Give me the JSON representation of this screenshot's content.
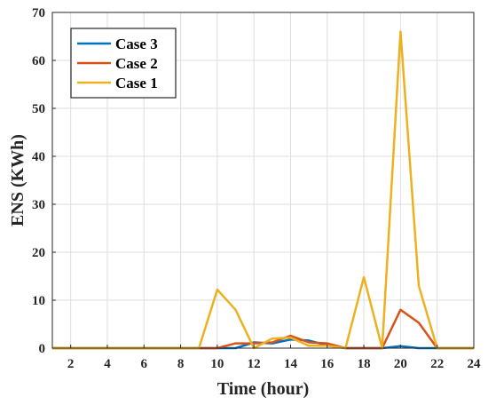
{
  "chart_data": {
    "type": "line",
    "title": "",
    "xlabel": "Time (hour)",
    "ylabel": "ENS (KWh)",
    "xlim": [
      1,
      24
    ],
    "ylim": [
      0,
      70
    ],
    "xticks": [
      2,
      4,
      6,
      8,
      10,
      12,
      14,
      16,
      18,
      20,
      22,
      24
    ],
    "yticks": [
      0,
      10,
      20,
      30,
      40,
      50,
      60,
      70
    ],
    "grid": true,
    "legend_position": "top-left",
    "x": [
      1,
      2,
      3,
      4,
      5,
      6,
      7,
      8,
      9,
      10,
      11,
      12,
      13,
      14,
      15,
      16,
      17,
      18,
      19,
      20,
      21,
      22,
      23,
      24
    ],
    "series": [
      {
        "name": "Case 3",
        "color": "#0072BD",
        "values": [
          0,
          0,
          0,
          0,
          0,
          0,
          0,
          0,
          0,
          0,
          0,
          1.2,
          1.0,
          1.8,
          1.6,
          0.6,
          0,
          0,
          0,
          0.4,
          0,
          0,
          0,
          0
        ]
      },
      {
        "name": "Case 2",
        "color": "#D95319",
        "values": [
          0,
          0,
          0,
          0,
          0,
          0,
          0,
          0,
          0,
          0,
          1.0,
          1.0,
          1.2,
          2.6,
          1.2,
          1.0,
          0,
          0,
          0,
          8.0,
          5.3,
          0,
          0,
          0
        ]
      },
      {
        "name": "Case 1",
        "color": "#EDB120",
        "values": [
          0,
          0,
          0,
          0,
          0,
          0,
          0,
          0,
          0,
          12.2,
          8.0,
          0,
          2.0,
          2.2,
          0.5,
          0.5,
          0,
          14.8,
          0,
          66.0,
          13.0,
          0,
          0,
          0
        ]
      }
    ]
  }
}
